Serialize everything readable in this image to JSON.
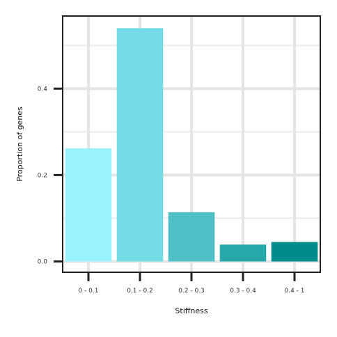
{
  "chart_data": {
    "type": "bar",
    "title": "",
    "xlabel": "Stiffness",
    "ylabel": "Proportion of genes",
    "categories": [
      "0 - 0.1",
      "0.1 - 0.2",
      "0.2 - 0.3",
      "0.3 - 0.4",
      "0.4 - 1"
    ],
    "values": [
      0.262,
      0.54,
      0.114,
      0.039,
      0.045
    ],
    "bar_colors": [
      "#9AF3FF",
      "#72DBE4",
      "#4EC0C5",
      "#27A9A9",
      "#008C8A"
    ],
    "ylim": [
      -0.025,
      0.568
    ],
    "y_ticks": [
      0.0,
      0.2,
      0.4
    ],
    "y_tick_labels": [
      "0.0",
      "0.2",
      "0.4"
    ],
    "y_minor_gridlines": [
      0.1,
      0.3,
      0.5
    ],
    "grid": true,
    "legend": "none"
  }
}
